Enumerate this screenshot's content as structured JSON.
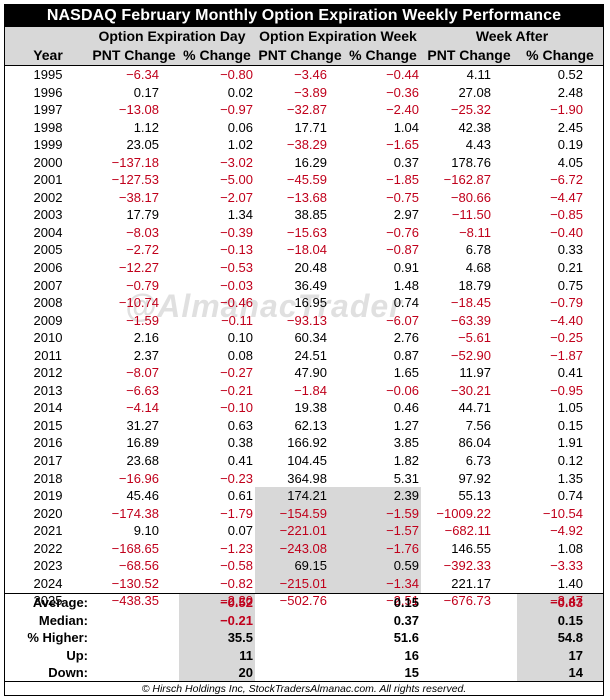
{
  "title": "NASDAQ February Monthly Option Expiration Weekly Performance",
  "headers": {
    "group1": "Option Expiration Day",
    "group2": "Option Expiration Week",
    "group3": "Week After",
    "year": "Year",
    "pnt": "PNT Change",
    "pct": "% Change"
  },
  "rows": [
    {
      "year": "1995",
      "d_pnt": "−6.34",
      "d_pct": "−0.80",
      "w_pnt": "−3.46",
      "w_pct": "−0.44",
      "a_pnt": "4.11",
      "a_pct": "0.52"
    },
    {
      "year": "1996",
      "d_pnt": "0.17",
      "d_pct": "0.02",
      "w_pnt": "−3.89",
      "w_pct": "−0.36",
      "a_pnt": "27.08",
      "a_pct": "2.48"
    },
    {
      "year": "1997",
      "d_pnt": "−13.08",
      "d_pct": "−0.97",
      "w_pnt": "−32.87",
      "w_pct": "−2.40",
      "a_pnt": "−25.32",
      "a_pct": "−1.90"
    },
    {
      "year": "1998",
      "d_pnt": "1.12",
      "d_pct": "0.06",
      "w_pnt": "17.71",
      "w_pct": "1.04",
      "a_pnt": "42.38",
      "a_pct": "2.45"
    },
    {
      "year": "1999",
      "d_pnt": "23.05",
      "d_pct": "1.02",
      "w_pnt": "−38.29",
      "w_pct": "−1.65",
      "a_pnt": "4.43",
      "a_pct": "0.19"
    },
    {
      "year": "2000",
      "d_pnt": "−137.18",
      "d_pct": "−3.02",
      "w_pnt": "16.29",
      "w_pct": "0.37",
      "a_pnt": "178.76",
      "a_pct": "4.05"
    },
    {
      "year": "2001",
      "d_pnt": "−127.53",
      "d_pct": "−5.00",
      "w_pnt": "−45.59",
      "w_pct": "−1.85",
      "a_pnt": "−162.87",
      "a_pct": "−6.72"
    },
    {
      "year": "2002",
      "d_pnt": "−38.17",
      "d_pct": "−2.07",
      "w_pnt": "−13.68",
      "w_pct": "−0.75",
      "a_pnt": "−80.66",
      "a_pct": "−4.47"
    },
    {
      "year": "2003",
      "d_pnt": "17.79",
      "d_pct": "1.34",
      "w_pnt": "38.85",
      "w_pct": "2.97",
      "a_pnt": "−11.50",
      "a_pct": "−0.85"
    },
    {
      "year": "2004",
      "d_pnt": "−8.03",
      "d_pct": "−0.39",
      "w_pnt": "−15.63",
      "w_pct": "−0.76",
      "a_pnt": "−8.11",
      "a_pct": "−0.40"
    },
    {
      "year": "2005",
      "d_pnt": "−2.72",
      "d_pct": "−0.13",
      "w_pnt": "−18.04",
      "w_pct": "−0.87",
      "a_pnt": "6.78",
      "a_pct": "0.33"
    },
    {
      "year": "2006",
      "d_pnt": "−12.27",
      "d_pct": "−0.53",
      "w_pnt": "20.48",
      "w_pct": "0.91",
      "a_pnt": "4.68",
      "a_pct": "0.21"
    },
    {
      "year": "2007",
      "d_pnt": "−0.79",
      "d_pct": "−0.03",
      "w_pnt": "36.49",
      "w_pct": "1.48",
      "a_pnt": "18.79",
      "a_pct": "0.75"
    },
    {
      "year": "2008",
      "d_pnt": "−10.74",
      "d_pct": "−0.46",
      "w_pnt": "16.95",
      "w_pct": "0.74",
      "a_pnt": "−18.45",
      "a_pct": "−0.79"
    },
    {
      "year": "2009",
      "d_pnt": "−1.59",
      "d_pct": "−0.11",
      "w_pnt": "−93.13",
      "w_pct": "−6.07",
      "a_pnt": "−63.39",
      "a_pct": "−4.40"
    },
    {
      "year": "2010",
      "d_pnt": "2.16",
      "d_pct": "0.10",
      "w_pnt": "60.34",
      "w_pct": "2.76",
      "a_pnt": "−5.61",
      "a_pct": "−0.25"
    },
    {
      "year": "2011",
      "d_pnt": "2.37",
      "d_pct": "0.08",
      "w_pnt": "24.51",
      "w_pct": "0.87",
      "a_pnt": "−52.90",
      "a_pct": "−1.87"
    },
    {
      "year": "2012",
      "d_pnt": "−8.07",
      "d_pct": "−0.27",
      "w_pnt": "47.90",
      "w_pct": "1.65",
      "a_pnt": "11.97",
      "a_pct": "0.41"
    },
    {
      "year": "2013",
      "d_pnt": "−6.63",
      "d_pct": "−0.21",
      "w_pnt": "−1.84",
      "w_pct": "−0.06",
      "a_pnt": "−30.21",
      "a_pct": "−0.95"
    },
    {
      "year": "2014",
      "d_pnt": "−4.14",
      "d_pct": "−0.10",
      "w_pnt": "19.38",
      "w_pct": "0.46",
      "a_pnt": "44.71",
      "a_pct": "1.05"
    },
    {
      "year": "2015",
      "d_pnt": "31.27",
      "d_pct": "0.63",
      "w_pnt": "62.13",
      "w_pct": "1.27",
      "a_pnt": "7.56",
      "a_pct": "0.15"
    },
    {
      "year": "2016",
      "d_pnt": "16.89",
      "d_pct": "0.38",
      "w_pnt": "166.92",
      "w_pct": "3.85",
      "a_pnt": "86.04",
      "a_pct": "1.91"
    },
    {
      "year": "2017",
      "d_pnt": "23.68",
      "d_pct": "0.41",
      "w_pnt": "104.45",
      "w_pct": "1.82",
      "a_pnt": "6.73",
      "a_pct": "0.12"
    },
    {
      "year": "2018",
      "d_pnt": "−16.96",
      "d_pct": "−0.23",
      "w_pnt": "364.98",
      "w_pct": "5.31",
      "a_pnt": "97.92",
      "a_pct": "1.35"
    },
    {
      "year": "2019",
      "d_pnt": "45.46",
      "d_pct": "0.61",
      "w_pnt": "174.21",
      "w_pct": "2.39",
      "a_pnt": "55.13",
      "a_pct": "0.74"
    },
    {
      "year": "2020",
      "d_pnt": "−174.38",
      "d_pct": "−1.79",
      "w_pnt": "−154.59",
      "w_pct": "−1.59",
      "a_pnt": "−1009.22",
      "a_pct": "−10.54"
    },
    {
      "year": "2021",
      "d_pnt": "9.10",
      "d_pct": "0.07",
      "w_pnt": "−221.01",
      "w_pct": "−1.57",
      "a_pnt": "−682.11",
      "a_pct": "−4.92"
    },
    {
      "year": "2022",
      "d_pnt": "−168.65",
      "d_pct": "−1.23",
      "w_pnt": "−243.08",
      "w_pct": "−1.76",
      "a_pnt": "146.55",
      "a_pct": "1.08"
    },
    {
      "year": "2023",
      "d_pnt": "−68.56",
      "d_pct": "−0.58",
      "w_pnt": "69.15",
      "w_pct": "0.59",
      "a_pnt": "−392.33",
      "a_pct": "−3.33"
    },
    {
      "year": "2024",
      "d_pnt": "−130.52",
      "d_pct": "−0.82",
      "w_pnt": "−215.01",
      "w_pct": "−1.34",
      "a_pnt": "221.17",
      "a_pct": "1.40"
    },
    {
      "year": "2025",
      "d_pnt": "−438.35",
      "d_pct": "−2.20",
      "w_pnt": "−502.76",
      "w_pct": "−2.51",
      "a_pnt": "−676.73",
      "a_pct": "−3.47"
    }
  ],
  "summary": [
    {
      "label": "Average:",
      "d": "−0.52",
      "w": "0.15",
      "a": "−0.83"
    },
    {
      "label": "Median:",
      "d": "−0.21",
      "w": "0.37",
      "a": "0.15"
    },
    {
      "label": "% Higher:",
      "d": "35.5",
      "w": "51.6",
      "a": "54.8"
    },
    {
      "label": "Up:",
      "d": "11",
      "w": "16",
      "a": "17"
    },
    {
      "label": "Down:",
      "d": "20",
      "w": "15",
      "a": "14"
    }
  ],
  "watermark": "@AlmanacTrader",
  "footer": "© Hirsch Holdings Inc, StockTradersAlmanac.com. All rights reserved.",
  "colors": {
    "negative": "#c0001b",
    "shade": "#d8d8d8",
    "header_bg": "#000000"
  }
}
